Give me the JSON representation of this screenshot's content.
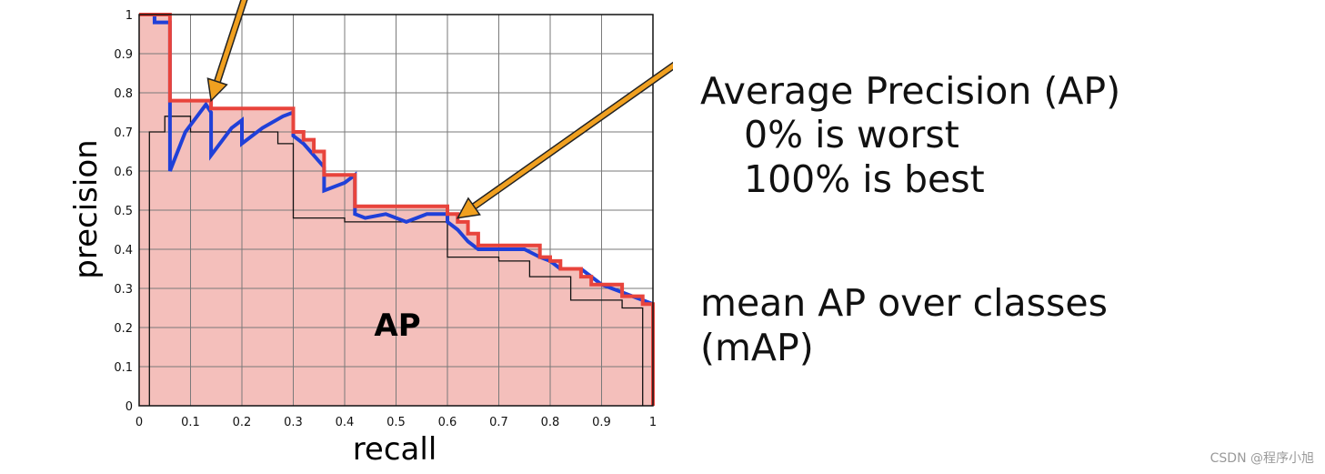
{
  "chart_data": {
    "type": "line",
    "title": "",
    "xlabel": "recall",
    "ylabel": "precision",
    "xlim": [
      0,
      1
    ],
    "ylim": [
      0,
      1
    ],
    "grid": true,
    "xticks": [
      "0",
      "0.1",
      "0.2",
      "0.3",
      "0.4",
      "0.5",
      "0.6",
      "0.7",
      "0.8",
      "0.9",
      "1"
    ],
    "yticks": [
      "0",
      "0.1",
      "0.2",
      "0.3",
      "0.4",
      "0.5",
      "0.6",
      "0.7",
      "0.8",
      "0.9",
      "1"
    ],
    "area_label": "AP",
    "fill_color": "#f4bfbb",
    "series": [
      {
        "color": "#2040d8",
        "x": [
          0.03,
          0.03,
          0.06,
          0.06,
          0.09,
          0.13,
          0.14,
          0.14,
          0.18,
          0.2,
          0.2,
          0.24,
          0.28,
          0.3,
          0.3,
          0.32,
          0.34,
          0.36,
          0.36,
          0.4,
          0.42,
          0.42,
          0.44,
          0.48,
          0.52,
          0.54,
          0.56,
          0.6,
          0.6,
          0.62,
          0.64,
          0.66,
          0.7,
          0.72,
          0.75,
          0.78,
          0.8,
          0.82,
          0.84,
          0.86,
          0.88,
          0.9,
          0.92,
          0.94,
          0.96,
          0.98,
          1.0
        ],
        "y": [
          1.0,
          0.98,
          0.98,
          0.6,
          0.7,
          0.77,
          0.75,
          0.64,
          0.71,
          0.73,
          0.67,
          0.71,
          0.74,
          0.75,
          0.69,
          0.67,
          0.64,
          0.61,
          0.55,
          0.57,
          0.59,
          0.49,
          0.48,
          0.49,
          0.47,
          0.48,
          0.49,
          0.49,
          0.47,
          0.45,
          0.42,
          0.4,
          0.4,
          0.4,
          0.4,
          0.38,
          0.37,
          0.35,
          0.35,
          0.35,
          0.33,
          0.31,
          0.3,
          0.29,
          0.28,
          0.27,
          0.26
        ]
      },
      {
        "color": "#e8443c",
        "x": [
          0.0,
          0.06,
          0.06,
          0.14,
          0.14,
          0.3,
          0.3,
          0.32,
          0.32,
          0.34,
          0.34,
          0.36,
          0.36,
          0.42,
          0.42,
          0.6,
          0.6,
          0.62,
          0.62,
          0.64,
          0.64,
          0.66,
          0.66,
          0.78,
          0.78,
          0.8,
          0.8,
          0.82,
          0.82,
          0.86,
          0.86,
          0.88,
          0.88,
          0.94,
          0.94,
          0.98,
          0.98,
          1.0,
          1.0
        ],
        "y": [
          1.0,
          1.0,
          0.78,
          0.78,
          0.76,
          0.76,
          0.7,
          0.7,
          0.68,
          0.68,
          0.65,
          0.65,
          0.59,
          0.59,
          0.51,
          0.51,
          0.49,
          0.49,
          0.47,
          0.47,
          0.44,
          0.44,
          0.41,
          0.41,
          0.38,
          0.38,
          0.37,
          0.37,
          0.35,
          0.35,
          0.33,
          0.33,
          0.31,
          0.31,
          0.28,
          0.28,
          0.26,
          0.26,
          0.0
        ]
      },
      {
        "color": "#111111",
        "x": [
          0.02,
          0.02,
          0.05,
          0.05,
          0.1,
          0.1,
          0.27,
          0.27,
          0.3,
          0.3,
          0.4,
          0.4,
          0.6,
          0.6,
          0.7,
          0.7,
          0.76,
          0.76,
          0.84,
          0.84,
          0.94,
          0.94,
          0.98,
          0.98
        ],
        "y": [
          0.0,
          0.7,
          0.7,
          0.74,
          0.74,
          0.7,
          0.7,
          0.67,
          0.67,
          0.48,
          0.48,
          0.47,
          0.47,
          0.38,
          0.38,
          0.37,
          0.37,
          0.33,
          0.33,
          0.27,
          0.27,
          0.25,
          0.25,
          0.0
        ]
      }
    ],
    "annotation_arrows": [
      {
        "color": "#f0a020",
        "target": [
          0.14,
          0.78
        ]
      },
      {
        "color": "#f0a020",
        "target": [
          0.62,
          0.48
        ]
      }
    ]
  },
  "side_text": {
    "line1": "Average Precision (AP)",
    "line2": "0%  is worst",
    "line3": "100%  is best",
    "line4": "mean AP over classes",
    "line5": "(mAP)"
  },
  "watermark": "CSDN @程序小旭"
}
